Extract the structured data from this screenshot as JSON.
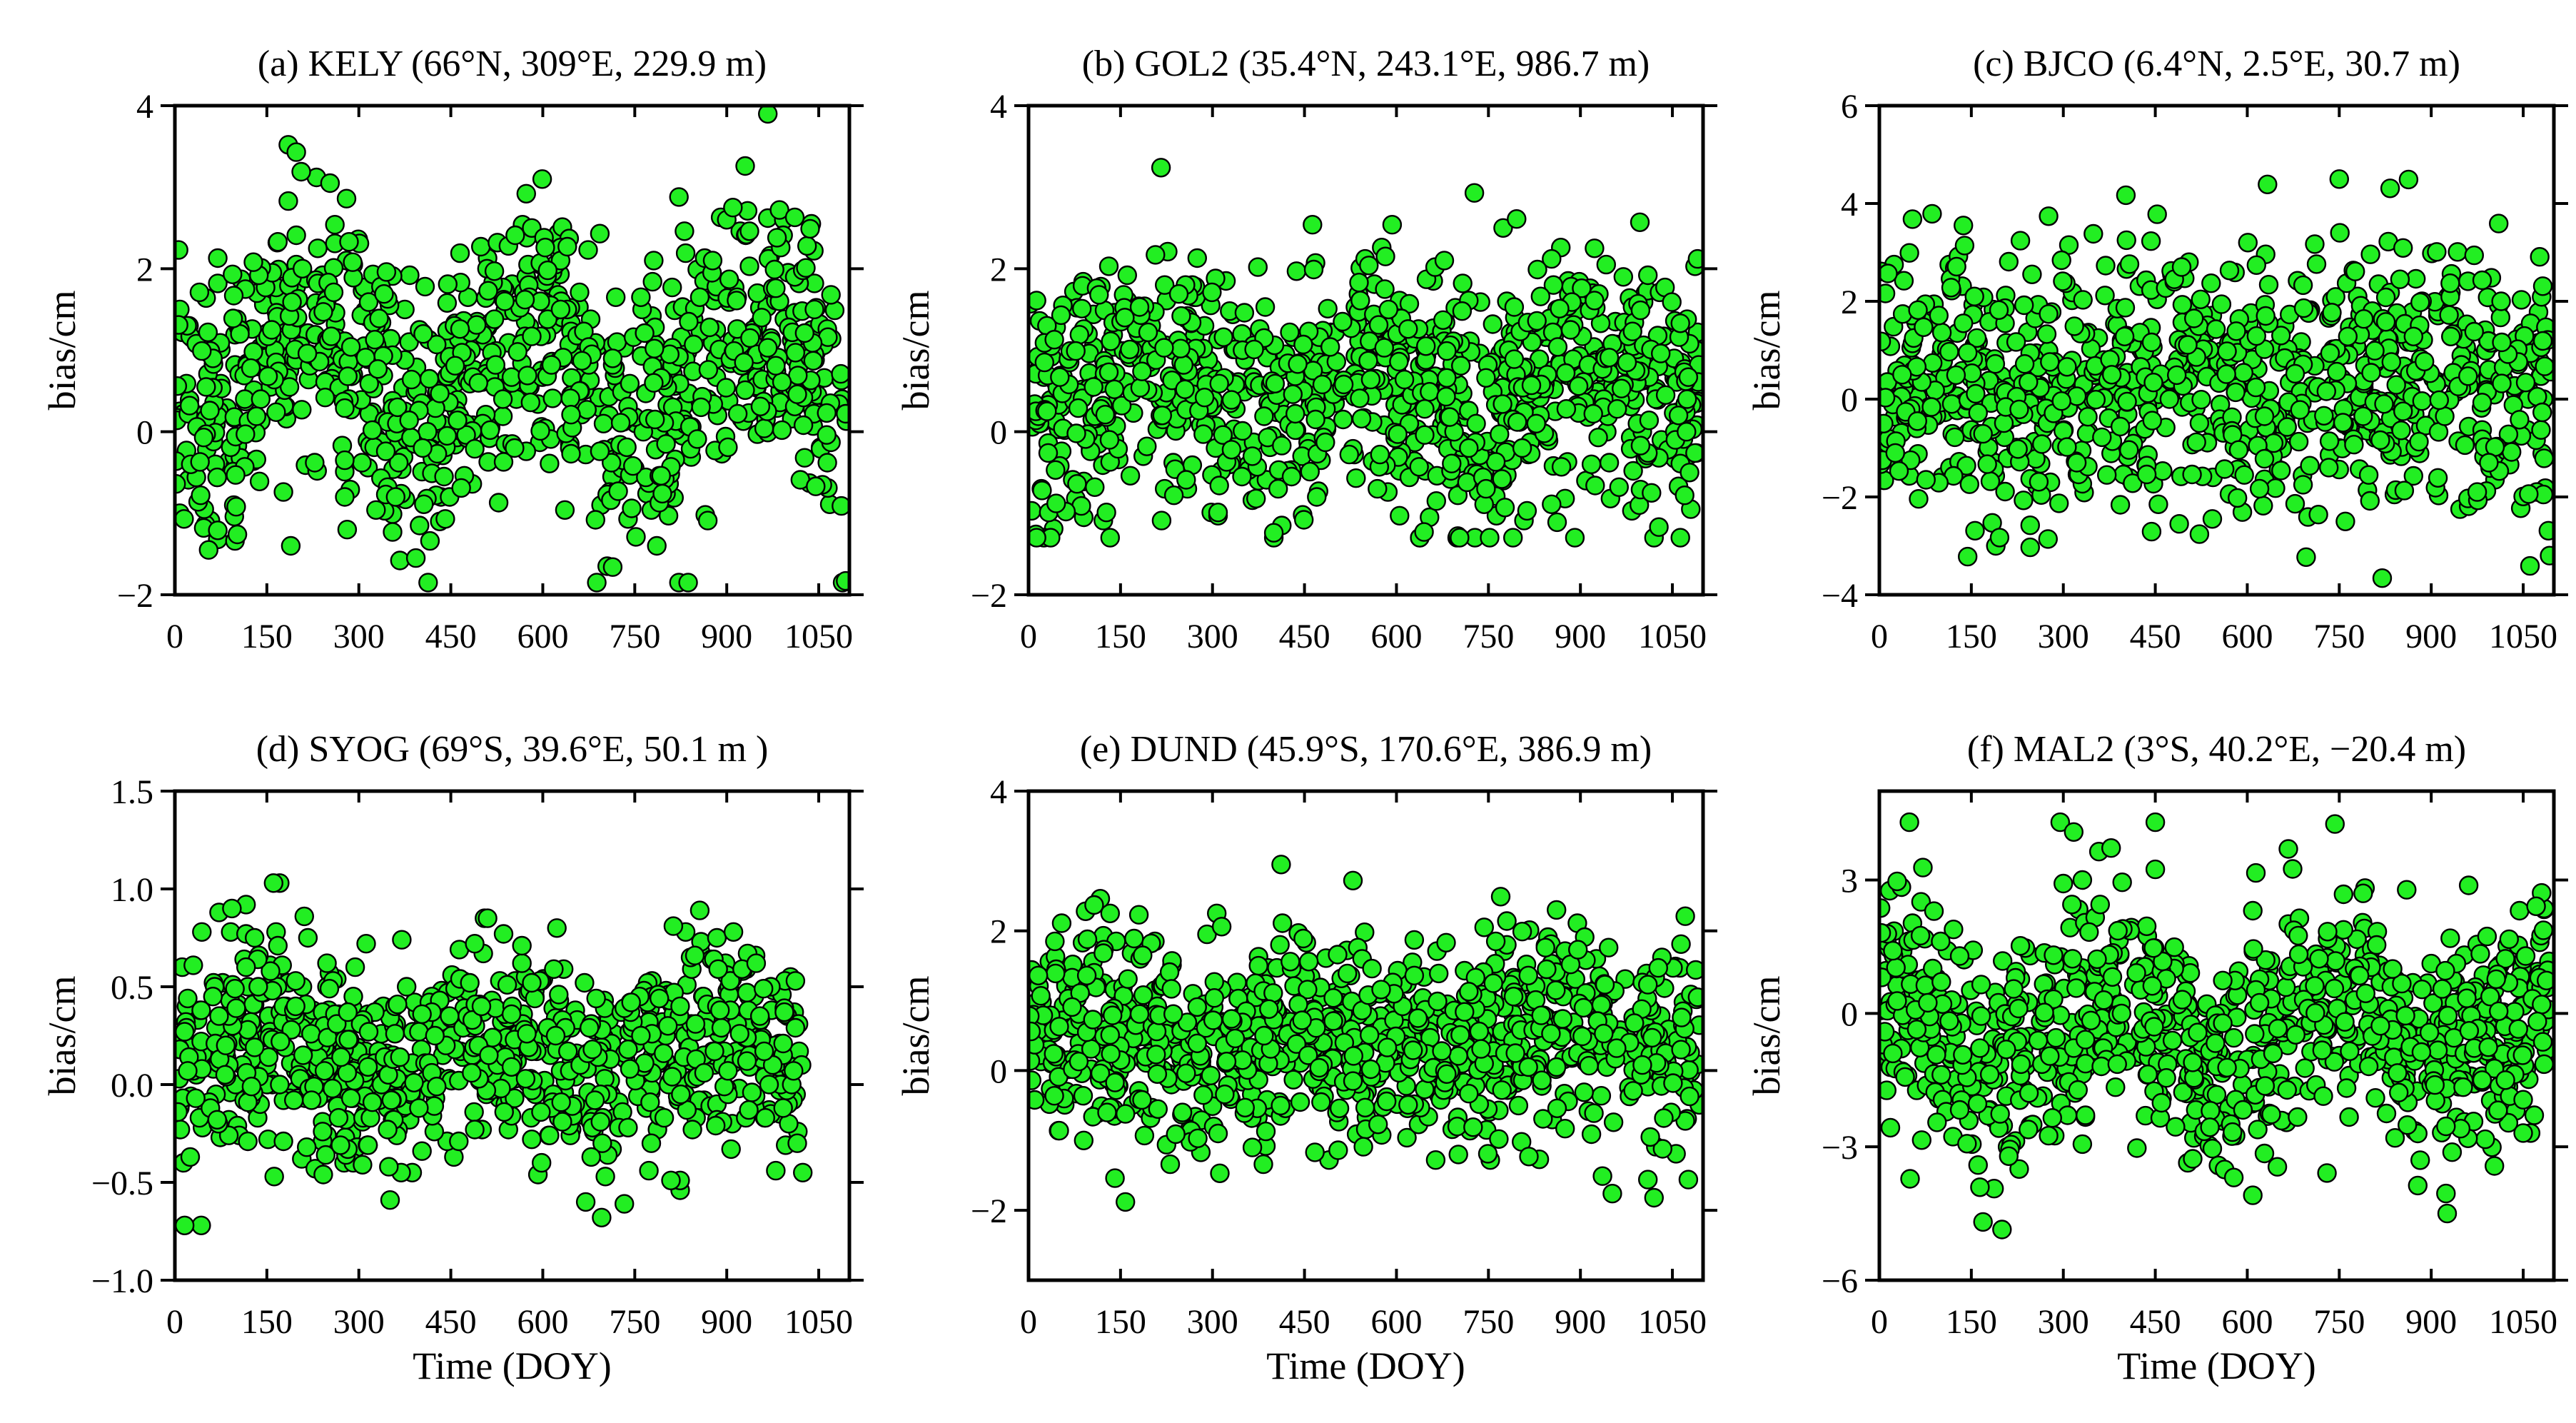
{
  "figure": {
    "marker_color": "#22ee22",
    "marker_edge_color": "#000000"
  },
  "chart_data": [
    {
      "type": "scatter",
      "title": "(a) KELY (66°N, 309°E, 229.9 m)",
      "xlabel": "",
      "ylabel": "bias/cm",
      "xlim": [
        0,
        1100
      ],
      "ylim": [
        -2,
        4
      ],
      "xticks": [
        0,
        150,
        300,
        450,
        600,
        750,
        900,
        1050
      ],
      "xtick_labels": [
        "0",
        "150",
        "300",
        "450",
        "600",
        "750",
        "900",
        "1050"
      ],
      "yticks": [
        -2,
        0,
        2,
        4
      ],
      "ytick_labels": [
        "−2",
        "0",
        "2",
        "4"
      ],
      "grid": false,
      "series": [
        {
          "name": "bias",
          "x": [],
          "y": []
        }
      ]
    },
    {
      "type": "scatter",
      "title": "(b) GOL2 (35.4°N, 243.1°E, 986.7 m)",
      "xlabel": "",
      "ylabel": "bias/cm",
      "xlim": [
        0,
        1100
      ],
      "ylim": [
        -2,
        4
      ],
      "xticks": [
        0,
        150,
        300,
        450,
        600,
        750,
        900,
        1050
      ],
      "xtick_labels": [
        "0",
        "150",
        "300",
        "450",
        "600",
        "750",
        "900",
        "1050"
      ],
      "yticks": [
        -2,
        0,
        2,
        4
      ],
      "ytick_labels": [
        "−2",
        "0",
        "2",
        "4"
      ],
      "grid": false,
      "series": [
        {
          "name": "bias",
          "x": [],
          "y": []
        }
      ]
    },
    {
      "type": "scatter",
      "title": "(c) BJCO (6.4°N, 2.5°E, 30.7 m)",
      "xlabel": "",
      "ylabel": "bias/cm",
      "xlim": [
        0,
        1100
      ],
      "ylim": [
        -4,
        6
      ],
      "xticks": [
        0,
        150,
        300,
        450,
        600,
        750,
        900,
        1050
      ],
      "xtick_labels": [
        "0",
        "150",
        "300",
        "450",
        "600",
        "750",
        "900",
        "1050"
      ],
      "yticks": [
        -4,
        -2,
        0,
        2,
        4,
        6
      ],
      "ytick_labels": [
        "−4",
        "−2",
        "0",
        "2",
        "4",
        "6"
      ],
      "grid": false,
      "series": [
        {
          "name": "bias",
          "x": [],
          "y": []
        }
      ]
    },
    {
      "type": "scatter",
      "title": "(d) SYOG (69°S, 39.6°E, 50.1 m )",
      "xlabel": "Time (DOY)",
      "ylabel": "bias/cm",
      "xlim": [
        0,
        1100
      ],
      "ylim": [
        -1.0,
        1.5
      ],
      "xticks": [
        0,
        150,
        300,
        450,
        600,
        750,
        900,
        1050
      ],
      "xtick_labels": [
        "0",
        "150",
        "300",
        "450",
        "600",
        "750",
        "900",
        "1050"
      ],
      "yticks": [
        -1.0,
        -0.5,
        0.0,
        0.5,
        1.0,
        1.5
      ],
      "ytick_labels": [
        "−1.0",
        "−0.5",
        "0.0",
        "0.5",
        "1.0",
        "1.5"
      ],
      "grid": false,
      "series": [
        {
          "name": "bias",
          "x": [],
          "y": []
        }
      ]
    },
    {
      "type": "scatter",
      "title": "(e) DUND (45.9°S, 170.6°E, 386.9 m)",
      "xlabel": "Time (DOY)",
      "ylabel": "bias/cm",
      "xlim": [
        0,
        1100
      ],
      "ylim": [
        -3,
        4
      ],
      "xticks": [
        0,
        150,
        300,
        450,
        600,
        750,
        900,
        1050
      ],
      "xtick_labels": [
        "0",
        "150",
        "300",
        "450",
        "600",
        "750",
        "900",
        "1050"
      ],
      "yticks": [
        -2,
        0,
        2,
        4
      ],
      "ytick_labels": [
        "−2",
        "0",
        "2",
        "4"
      ],
      "grid": false,
      "series": [
        {
          "name": "bias",
          "x": [],
          "y": []
        }
      ]
    },
    {
      "type": "scatter",
      "title": "(f) MAL2 (3°S, 40.2°E, −20.4 m)",
      "xlabel": "Time (DOY)",
      "ylabel": "bias/cm",
      "xlim": [
        0,
        1100
      ],
      "ylim": [
        -6,
        5
      ],
      "xticks": [
        0,
        150,
        300,
        450,
        600,
        750,
        900,
        1050
      ],
      "xtick_labels": [
        "0",
        "150",
        "300",
        "450",
        "600",
        "750",
        "900",
        "1050"
      ],
      "yticks": [
        -6,
        -3,
        0,
        3
      ],
      "ytick_labels": [
        "−6",
        "−3",
        "0",
        "3"
      ],
      "grid": false,
      "series": [
        {
          "name": "bias",
          "x": [],
          "y": []
        }
      ]
    }
  ]
}
